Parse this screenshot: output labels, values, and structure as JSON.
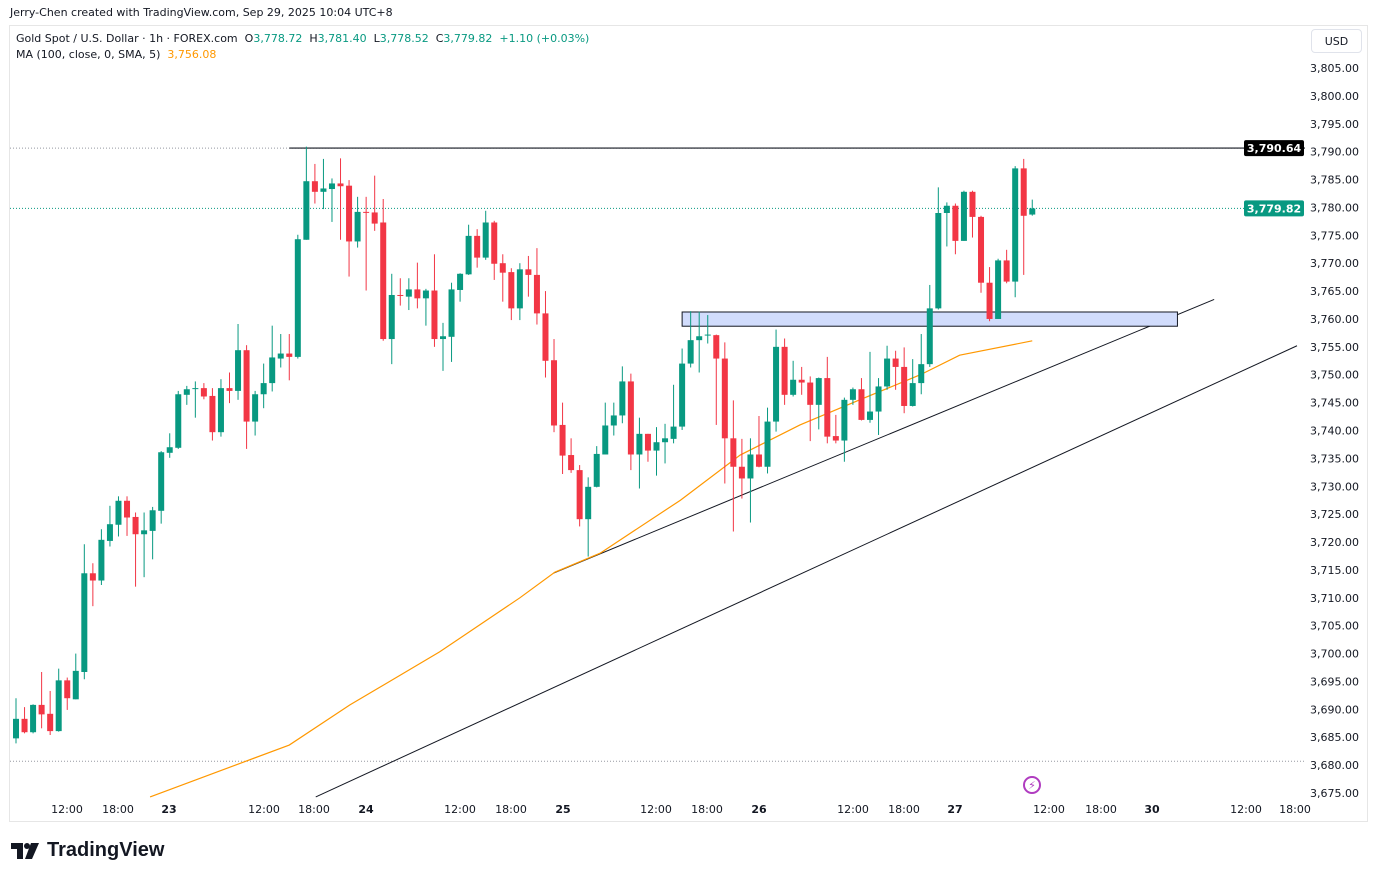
{
  "credit": "Jerry-Chen created with TradingView.com, Sep 29, 2025 10:04 UTC+8",
  "legend": {
    "symbol": "Gold Spot / U.S. Dollar · 1h · FOREX.com",
    "open_label": "O",
    "open": "3,778.72",
    "high_label": "H",
    "high": "3,781.40",
    "low_label": "L",
    "low": "3,778.52",
    "close_label": "C",
    "close": "3,779.82",
    "change": "+1.10 (+0.03%)",
    "ma_label": "MA (100, close, 0, SMA, 5)",
    "ma_value": "3,756.08"
  },
  "currency_button": "USD",
  "brand": "TradingView",
  "event_icon": "lightning-icon",
  "colors": {
    "up": "#089981",
    "down": "#f23645",
    "ma": "#ff9800",
    "zone": "#d1dcfc",
    "event": "#b03cc0"
  },
  "chart_data": {
    "type": "candlestick",
    "title": "Gold Spot / U.S. Dollar · 1h · FOREX.com",
    "ylim": [
      3672.5,
      3807.5
    ],
    "y_ticks": [
      "3,805.00",
      "3,800.00",
      "3,795.00",
      "3,790.00",
      "3,785.00",
      "3,780.00",
      "3,775.00",
      "3,770.00",
      "3,765.00",
      "3,760.00",
      "3,755.00",
      "3,750.00",
      "3,745.00",
      "3,740.00",
      "3,735.00",
      "3,730.00",
      "3,725.00",
      "3,720.00",
      "3,715.00",
      "3,710.00",
      "3,705.00",
      "3,700.00",
      "3,695.00",
      "3,690.00",
      "3,685.00",
      "3,680.00",
      "3,675.00"
    ],
    "y_tick_values": [
      3805,
      3800,
      3795,
      3790,
      3785,
      3780,
      3775,
      3770,
      3765,
      3760,
      3755,
      3750,
      3745,
      3740,
      3735,
      3730,
      3725,
      3720,
      3715,
      3710,
      3705,
      3700,
      3695,
      3690,
      3685,
      3680,
      3675
    ],
    "x_ticks": [
      "12:00",
      "18:00",
      "23",
      "12:00",
      "18:00",
      "24",
      "12:00",
      "18:00",
      "25",
      "12:00",
      "18:00",
      "26",
      "12:00",
      "18:00",
      "27",
      "12:00",
      "18:00",
      "30",
      "12:00",
      "18:00"
    ],
    "price_labels": [
      {
        "text": "3,790.64",
        "value": 3790.64,
        "style": "black"
      },
      {
        "text": "3,779.82",
        "value": 3779.82,
        "style": "green"
      }
    ],
    "candles_ohlc": [
      [
        3684.8,
        3692.0,
        3683.9,
        3688.3
      ],
      [
        3688.3,
        3690.4,
        3685.7,
        3685.9
      ],
      [
        3685.9,
        3690.9,
        3685.7,
        3690.8
      ],
      [
        3690.8,
        3696.7,
        3686.6,
        3689.1
      ],
      [
        3689.2,
        3693.3,
        3685.4,
        3686.1
      ],
      [
        3686.1,
        3697.3,
        3686.0,
        3695.2
      ],
      [
        3695.2,
        3695.7,
        3689.9,
        3692.0
      ],
      [
        3691.8,
        3700.0,
        3691.8,
        3696.9
      ],
      [
        3696.7,
        3719.6,
        3695.4,
        3714.4
      ],
      [
        3714.4,
        3716.2,
        3708.5,
        3713.1
      ],
      [
        3713.1,
        3722.3,
        3712.3,
        3720.4
      ],
      [
        3720.2,
        3726.5,
        3719.2,
        3723.2
      ],
      [
        3723.1,
        3728.2,
        3721.0,
        3727.4
      ],
      [
        3727.4,
        3728.2,
        3721.1,
        3724.4
      ],
      [
        3724.5,
        3725.3,
        3712.0,
        3721.4
      ],
      [
        3721.4,
        3725.3,
        3713.7,
        3722.1
      ],
      [
        3722.0,
        3726.3,
        3716.9,
        3725.7
      ],
      [
        3725.6,
        3736.3,
        3723.3,
        3736.1
      ],
      [
        3736.0,
        3739.5,
        3735.1,
        3737.0
      ],
      [
        3736.9,
        3747.1,
        3736.7,
        3746.5
      ],
      [
        3746.4,
        3748.0,
        3744.6,
        3747.4
      ],
      [
        3747.5,
        3748.8,
        3742.3,
        3747.6
      ],
      [
        3747.6,
        3748.5,
        3745.6,
        3746.1
      ],
      [
        3746.2,
        3747.6,
        3738.2,
        3739.7
      ],
      [
        3739.7,
        3749.2,
        3738.9,
        3747.6
      ],
      [
        3747.6,
        3750.4,
        3744.9,
        3747.1
      ],
      [
        3747.1,
        3759.1,
        3745.5,
        3754.4
      ],
      [
        3754.4,
        3755.3,
        3736.7,
        3741.6
      ],
      [
        3741.6,
        3747.1,
        3739.1,
        3746.5
      ],
      [
        3746.5,
        3752.0,
        3744.0,
        3748.5
      ],
      [
        3748.5,
        3758.8,
        3747.0,
        3753.1
      ],
      [
        3752.9,
        3757.3,
        3751.3,
        3753.8
      ],
      [
        3753.8,
        3757.3,
        3749.0,
        3753.2
      ],
      [
        3753.2,
        3775.1,
        3752.9,
        3774.3
      ],
      [
        3774.2,
        3790.9,
        3774.2,
        3784.7
      ],
      [
        3784.7,
        3787.8,
        3780.7,
        3782.8
      ],
      [
        3782.8,
        3788.7,
        3779.7,
        3783.4
      ],
      [
        3783.3,
        3785.2,
        3777.4,
        3784.3
      ],
      [
        3784.3,
        3788.8,
        3774.2,
        3783.8
      ],
      [
        3783.9,
        3784.9,
        3767.6,
        3773.9
      ],
      [
        3773.9,
        3781.9,
        3772.8,
        3779.2
      ],
      [
        3779.2,
        3781.9,
        3765.1,
        3779.1
      ],
      [
        3779.1,
        3785.7,
        3775.8,
        3777.1
      ],
      [
        3777.3,
        3781.5,
        3756.1,
        3756.4
      ],
      [
        3756.4,
        3768.1,
        3751.9,
        3764.3
      ],
      [
        3764.3,
        3767.3,
        3762.4,
        3764.2
      ],
      [
        3764.0,
        3767.3,
        3761.6,
        3765.3
      ],
      [
        3765.3,
        3770.1,
        3761.9,
        3763.7
      ],
      [
        3763.7,
        3765.4,
        3758.8,
        3765.1
      ],
      [
        3765.1,
        3771.6,
        3755.0,
        3756.4
      ],
      [
        3756.4,
        3759.3,
        3750.7,
        3756.9
      ],
      [
        3756.8,
        3766.5,
        3752.3,
        3765.3
      ],
      [
        3765.2,
        3768.2,
        3763.1,
        3768.1
      ],
      [
        3768.0,
        3776.9,
        3767.9,
        3774.9
      ],
      [
        3774.9,
        3776.1,
        3769.2,
        3771.0
      ],
      [
        3771.0,
        3779.4,
        3770.6,
        3777.3
      ],
      [
        3777.3,
        3777.6,
        3767.0,
        3769.9
      ],
      [
        3770.0,
        3771.6,
        3763.1,
        3768.3
      ],
      [
        3768.4,
        3769.1,
        3759.8,
        3761.9
      ],
      [
        3761.9,
        3770.0,
        3759.8,
        3768.9
      ],
      [
        3768.9,
        3771.3,
        3764.0,
        3767.9
      ],
      [
        3767.9,
        3772.7,
        3759.0,
        3761.0
      ],
      [
        3761.0,
        3765.0,
        3749.5,
        3752.5
      ],
      [
        3752.6,
        3756.4,
        3739.7,
        3740.9
      ],
      [
        3741.0,
        3745.0,
        3732.2,
        3735.5
      ],
      [
        3735.6,
        3738.6,
        3732.4,
        3732.9
      ],
      [
        3732.9,
        3733.8,
        3722.8,
        3724.1
      ],
      [
        3724.1,
        3731.6,
        3717.4,
        3729.9
      ],
      [
        3729.9,
        3737.2,
        3729.8,
        3735.8
      ],
      [
        3735.7,
        3745.0,
        3735.7,
        3740.9
      ],
      [
        3740.9,
        3745.0,
        3739.1,
        3742.7
      ],
      [
        3742.7,
        3751.5,
        3741.3,
        3748.8
      ],
      [
        3748.8,
        3750.2,
        3732.9,
        3735.7
      ],
      [
        3735.7,
        3742.3,
        3729.6,
        3739.4
      ],
      [
        3739.4,
        3739.4,
        3734.4,
        3736.4
      ],
      [
        3736.4,
        3740.6,
        3731.9,
        3737.9
      ],
      [
        3737.9,
        3741.2,
        3734.1,
        3738.6
      ],
      [
        3738.5,
        3748.2,
        3737.7,
        3740.7
      ],
      [
        3740.7,
        3754.7,
        3740.1,
        3752.0
      ],
      [
        3752.0,
        3761.4,
        3751.3,
        3756.2
      ],
      [
        3756.2,
        3761.3,
        3750.4,
        3756.9
      ],
      [
        3757.1,
        3760.7,
        3755.6,
        3757.2
      ],
      [
        3757.1,
        3757.2,
        3741.0,
        3752.9
      ],
      [
        3752.9,
        3755.8,
        3730.5,
        3738.6
      ],
      [
        3738.6,
        3745.4,
        3721.9,
        3733.5
      ],
      [
        3733.5,
        3738.5,
        3727.8,
        3731.4
      ],
      [
        3731.4,
        3738.6,
        3723.5,
        3735.7
      ],
      [
        3735.7,
        3742.6,
        3733.4,
        3733.5
      ],
      [
        3733.5,
        3744.1,
        3732.3,
        3741.6
      ],
      [
        3741.6,
        3758.1,
        3739.8,
        3755.0
      ],
      [
        3755.0,
        3756.5,
        3744.6,
        3746.4
      ],
      [
        3746.4,
        3752.5,
        3746.1,
        3749.1
      ],
      [
        3749.1,
        3751.4,
        3746.4,
        3748.6
      ],
      [
        3748.6,
        3749.7,
        3738.1,
        3744.6
      ],
      [
        3744.6,
        3749.5,
        3740.2,
        3749.4
      ],
      [
        3749.4,
        3753.2,
        3737.7,
        3738.9
      ],
      [
        3739.0,
        3742.8,
        3737.7,
        3738.2
      ],
      [
        3738.2,
        3745.9,
        3734.4,
        3745.5
      ],
      [
        3745.5,
        3747.7,
        3744.6,
        3747.4
      ],
      [
        3747.4,
        3749.4,
        3741.8,
        3741.9
      ],
      [
        3741.9,
        3754.1,
        3741.4,
        3743.4
      ],
      [
        3743.4,
        3749.4,
        3739.2,
        3747.9
      ],
      [
        3747.9,
        3755.2,
        3747.3,
        3752.9
      ],
      [
        3752.9,
        3754.3,
        3747.3,
        3751.4
      ],
      [
        3751.4,
        3754.9,
        3743.1,
        3744.4
      ],
      [
        3744.4,
        3752.8,
        3744.3,
        3748.5
      ],
      [
        3748.5,
        3757.3,
        3746.5,
        3751.9
      ],
      [
        3751.9,
        3766.1,
        3751.4,
        3761.9
      ],
      [
        3761.9,
        3783.6,
        3761.7,
        3779.0
      ],
      [
        3779.0,
        3780.9,
        3773.0,
        3780.3
      ],
      [
        3780.3,
        3780.7,
        3771.6,
        3774.0
      ],
      [
        3774.0,
        3783.0,
        3774.0,
        3782.8
      ],
      [
        3782.8,
        3783.0,
        3774.6,
        3778.3
      ],
      [
        3778.3,
        3778.5,
        3764.7,
        3766.5
      ],
      [
        3766.5,
        3769.3,
        3759.6,
        3760.0
      ],
      [
        3760.0,
        3770.8,
        3760.0,
        3770.5
      ],
      [
        3770.5,
        3772.4,
        3766.4,
        3766.7
      ],
      [
        3766.7,
        3787.4,
        3763.9,
        3787.0
      ],
      [
        3787.0,
        3788.7,
        3767.9,
        3778.5
      ],
      [
        3778.72,
        3781.4,
        3778.52,
        3779.82
      ]
    ],
    "ma_series": {
      "name": "MA (100, close, 0, SMA, 5)",
      "points": [
        [
          15.7,
          3674.3
        ],
        [
          32,
          3683.6
        ],
        [
          39.1,
          3690.8
        ],
        [
          49.6,
          3700.3
        ],
        [
          59,
          3710.0
        ],
        [
          63.1,
          3714.6
        ],
        [
          68.4,
          3718.0
        ],
        [
          77.8,
          3727.5
        ],
        [
          84.8,
          3735.6
        ],
        [
          91.8,
          3741.0
        ],
        [
          98.8,
          3745.5
        ],
        [
          105.9,
          3750.0
        ],
        [
          110.5,
          3753.5
        ],
        [
          119,
          3756.08
        ]
      ]
    },
    "drawings": {
      "resistance_line": {
        "price": 3790.64,
        "from_bar": 32
      },
      "trendline_1": {
        "from": [
          62.9,
          3714.4
        ],
        "to": [
          140.3,
          3763.5
        ]
      },
      "trendline_2": {
        "from": [
          35.1,
          3674.3
        ],
        "to": [
          150,
          3755.2
        ]
      },
      "zone": {
        "from_bar": 78,
        "to_bar": 136,
        "top": 3761.25,
        "bottom": 3758.7
      },
      "range_high": 3790.64,
      "range_low": 3680.7
    }
  }
}
